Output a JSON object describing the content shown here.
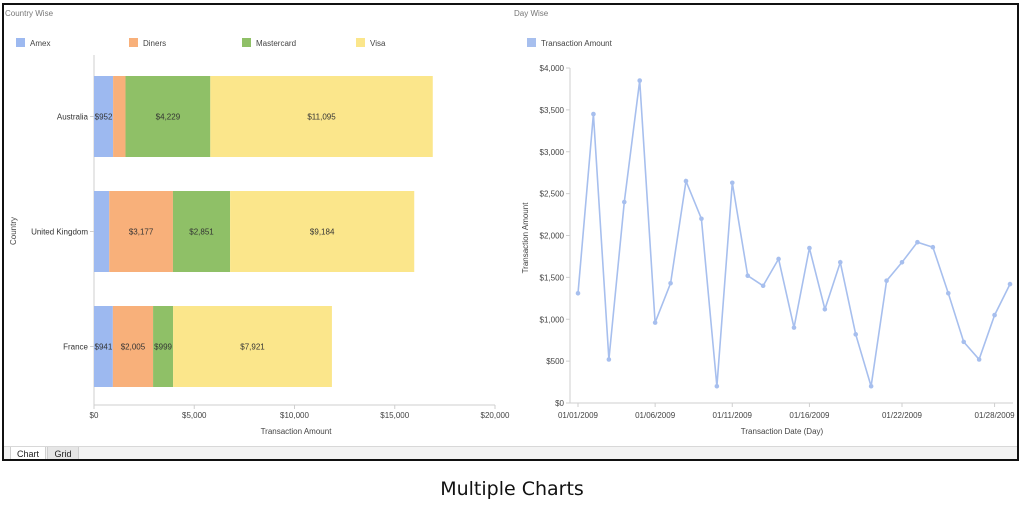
{
  "caption": "Multiple Charts",
  "tabs": [
    {
      "label": "Chart",
      "active": true
    },
    {
      "label": "Grid",
      "active": false
    }
  ],
  "chart_data": [
    {
      "type": "bar",
      "orientation": "horizontal",
      "stacked": true,
      "title": "Country Wise",
      "xlabel": "Transaction Amount",
      "ylabel": "Country",
      "xlim": [
        0,
        20000
      ],
      "xticks": [
        "$0",
        "$5,000",
        "$10,000",
        "$15,000",
        "$20,000"
      ],
      "legend_position": "top",
      "categories": [
        "Australia",
        "United Kingdom",
        "France"
      ],
      "series": [
        {
          "name": "Amex",
          "color": "#9db9f0",
          "values": [
            952,
            760,
            941
          ],
          "labels": [
            "$952",
            "",
            "$941"
          ]
        },
        {
          "name": "Diners",
          "color": "#f8b07a",
          "values": [
            620,
            3177,
            2005
          ],
          "labels": [
            "",
            "$3,177",
            "$2,005"
          ]
        },
        {
          "name": "Mastercard",
          "color": "#8fc067",
          "values": [
            4229,
            2851,
            999
          ],
          "labels": [
            "$4,229",
            "$2,851",
            "$999"
          ]
        },
        {
          "name": "Visa",
          "color": "#fbe68b",
          "values": [
            11095,
            9184,
            7921
          ],
          "labels": [
            "$11,095",
            "$9,184",
            "$7,921"
          ]
        }
      ]
    },
    {
      "type": "line",
      "title": "Day Wise",
      "xlabel": "Transaction Date (Day)",
      "ylabel": "Transaction Amount",
      "ylim": [
        0,
        4000
      ],
      "yticks": [
        "$0",
        "$500",
        "$1,000",
        "$1,500",
        "$2,000",
        "$2,500",
        "$3,000",
        "$3,500",
        "$4,000"
      ],
      "xticks": [
        "01/01/2009",
        "01/06/2009",
        "01/11/2009",
        "01/16/2009",
        "01/22/2009",
        "01/28/2009"
      ],
      "legend_position": "top",
      "series": [
        {
          "name": "Transaction Amount",
          "color": "#a7bfee",
          "values": [
            1310,
            3450,
            520,
            2400,
            3850,
            960,
            1430,
            2650,
            2200,
            200,
            2630,
            1520,
            1400,
            1720,
            900,
            1850,
            1120,
            1680,
            820,
            200,
            1460,
            1680,
            1920,
            1860,
            1310,
            730,
            520,
            1050,
            1420
          ]
        }
      ]
    }
  ]
}
